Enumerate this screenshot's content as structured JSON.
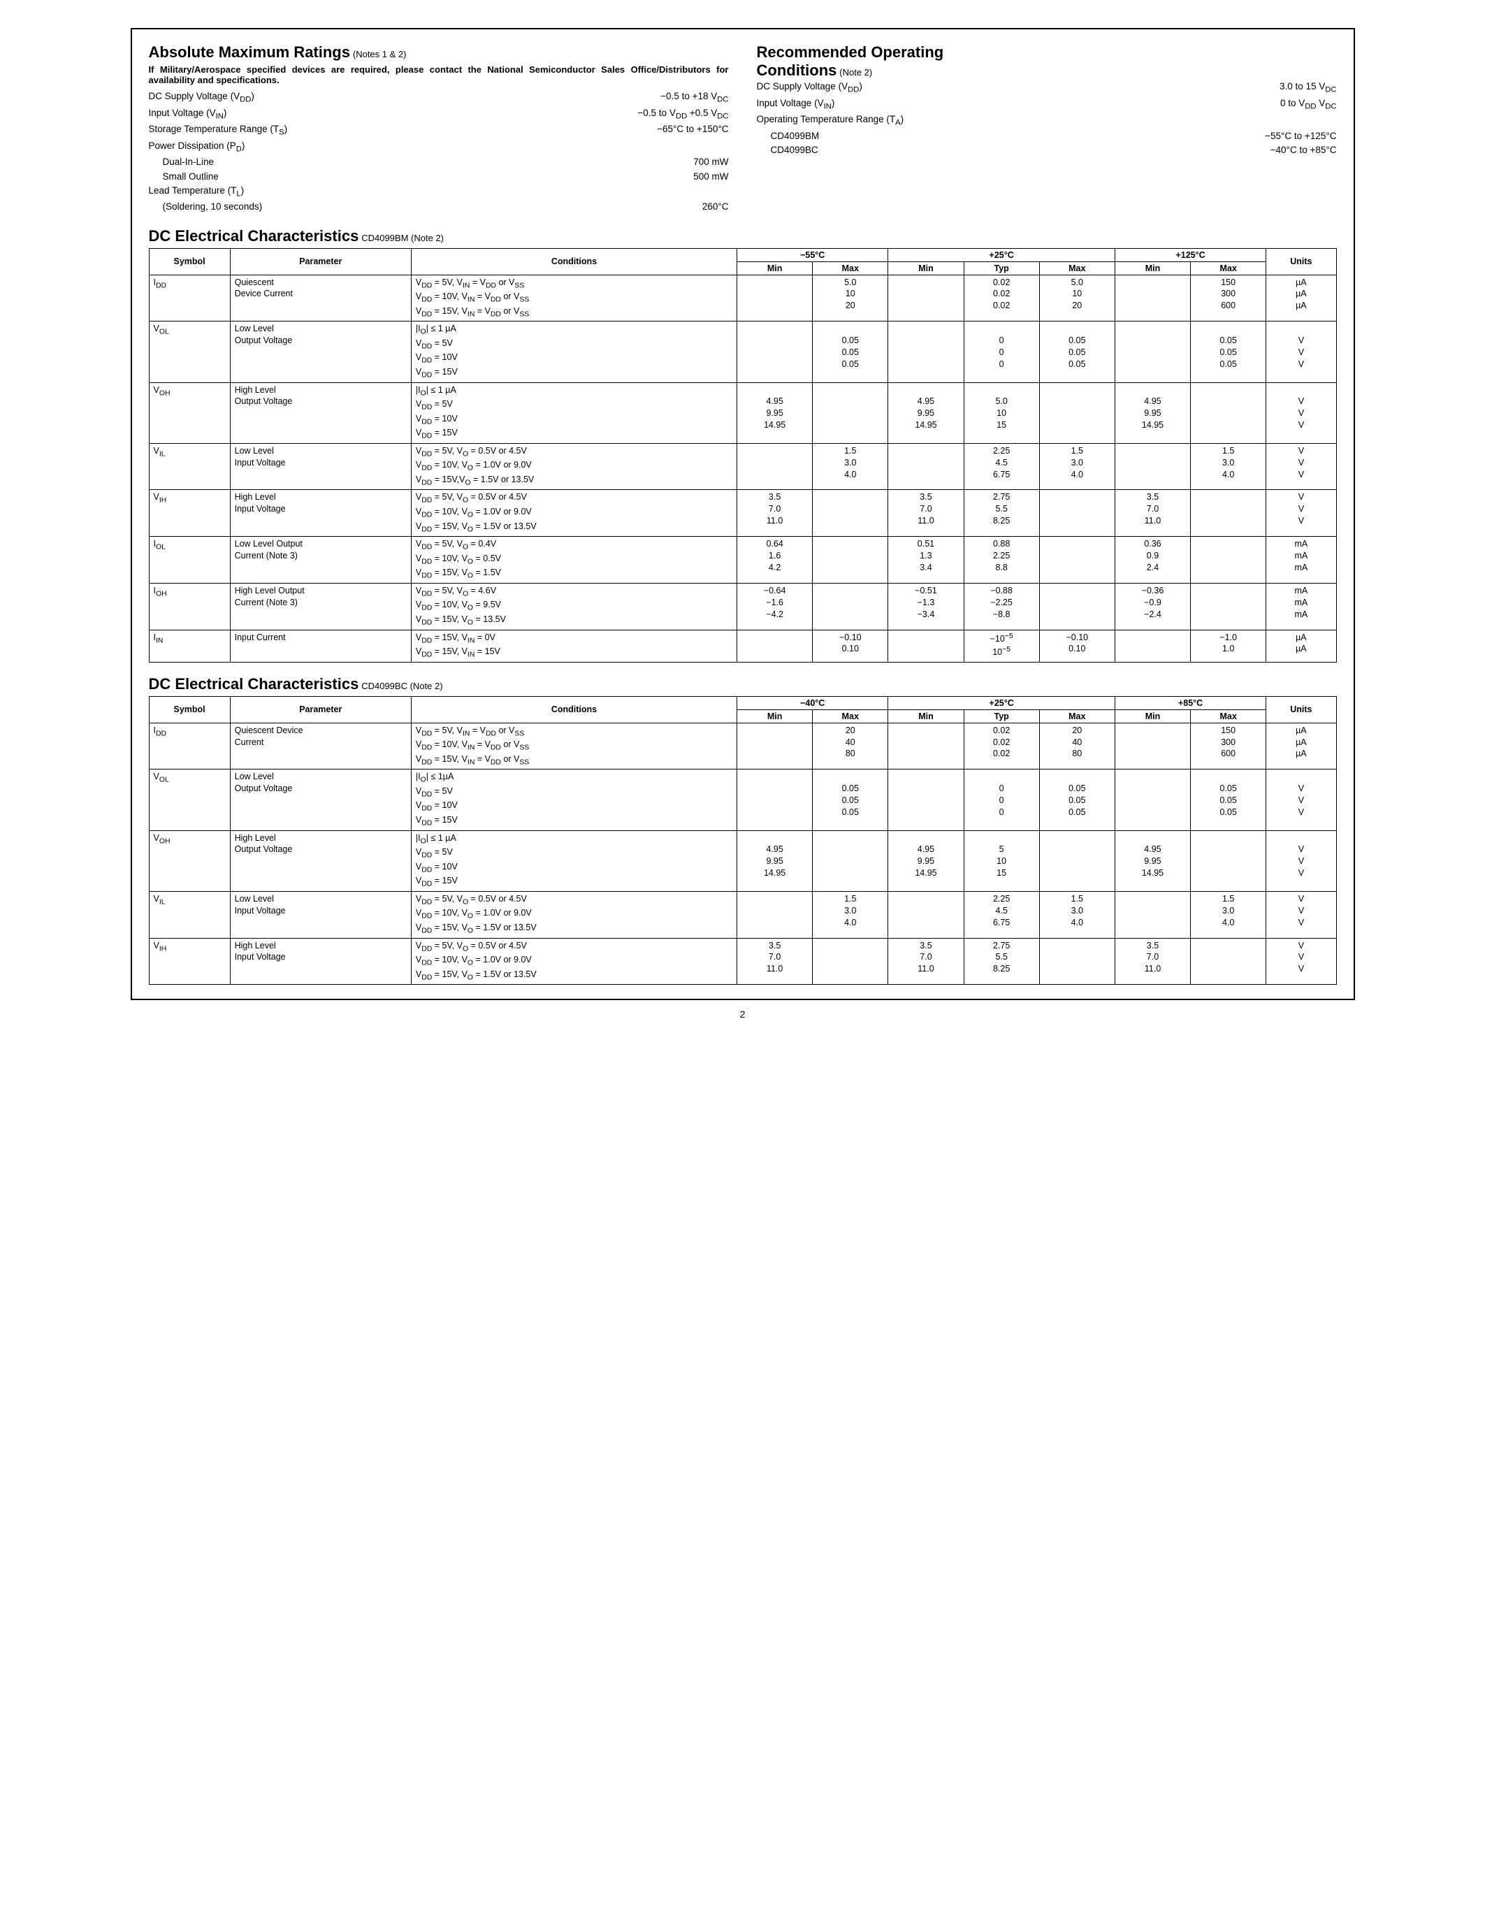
{
  "page_number": "2",
  "abs_max": {
    "title": "Absolute Maximum Ratings",
    "notes": "(Notes 1 & 2)",
    "intro": "If Military/Aerospace specified devices are required, please contact the National Semiconductor Sales Office/Distributors for availability and specifications.",
    "rows": [
      {
        "k": "DC Supply Voltage (V<sub>DD</sub>)",
        "v": "−0.5 to +18 V<sub>DC</sub>"
      },
      {
        "k": "Input Voltage (V<sub>IN</sub>)",
        "v": "−0.5 to V<sub>DD</sub> +0.5 V<sub>DC</sub>"
      },
      {
        "k": "Storage Temperature Range (T<sub>S</sub>)",
        "v": "−65°C to +150°C"
      },
      {
        "k": "Power Dissipation (P<sub>D</sub>)",
        "v": ""
      },
      {
        "k": "Dual-In-Line",
        "v": "700 mW",
        "indent": true
      },
      {
        "k": "Small Outline",
        "v": "500 mW",
        "indent": true
      },
      {
        "k": "Lead Temperature (T<sub>L</sub>)",
        "v": ""
      },
      {
        "k": "(Soldering, 10 seconds)",
        "v": "260°C",
        "indent": true
      }
    ]
  },
  "rec_op": {
    "title": "Recommended Operating",
    "title2": "Conditions",
    "notes": "(Note 2)",
    "rows": [
      {
        "k": "DC Supply Voltage (V<sub>DD</sub>)",
        "v": "3.0 to 15 V<sub>DC</sub>"
      },
      {
        "k": "Input Voltage (V<sub>IN</sub>)",
        "v": "0 to V<sub>DD</sub> V<sub>DC</sub>"
      },
      {
        "k": "Operating Temperature Range (T<sub>A</sub>)",
        "v": ""
      },
      {
        "k": "CD4099BM",
        "v": "−55°C to +125°C",
        "indent": true
      },
      {
        "k": "CD4099BC",
        "v": "−40°C to +85°C",
        "indent": true
      }
    ]
  },
  "dc1": {
    "title": "DC Electrical Characteristics",
    "part": "CD4099BM (Note 2)",
    "temps": [
      "−55°C",
      "+25°C",
      "+125°C"
    ],
    "cols25": [
      "Min",
      "Typ",
      "Max"
    ],
    "rows": [
      {
        "sym": "I<sub>DD</sub>",
        "param": "Quiescent<br>Device Current",
        "cond": "V<sub>DD</sub> = 5V, V<sub>IN</sub> = V<sub>DD</sub> or V<sub>SS</sub><br>V<sub>DD</sub> = 10V, V<sub>IN</sub> = V<sub>DD</sub> or V<sub>SS</sub><br>V<sub>DD</sub> = 15V, V<sub>IN</sub> = V<sub>DD</sub> or V<sub>SS</sub>",
        "t1min": "",
        "t1max": "5.0<br>10<br>20",
        "t2min": "",
        "t2typ": "0.02<br>0.02<br>0.02",
        "t2max": "5.0<br>10<br>20",
        "t3min": "",
        "t3max": "150<br>300<br>600",
        "units": "µA<br>µA<br>µA"
      },
      {
        "sym": "V<sub>OL</sub>",
        "param": "Low Level<br>Output Voltage",
        "cond": "|I<sub>O</sub>| ≤ 1 µA<br>V<sub>DD</sub> = 5V<br>V<sub>DD</sub> = 10V<br>V<sub>DD</sub> = 15V",
        "t1min": "",
        "t1max": "<br>0.05<br>0.05<br>0.05",
        "t2min": "",
        "t2typ": "<br>0<br>0<br>0",
        "t2max": "<br>0.05<br>0.05<br>0.05",
        "t3min": "",
        "t3max": "<br>0.05<br>0.05<br>0.05",
        "units": "<br>V<br>V<br>V"
      },
      {
        "sym": "V<sub>OH</sub>",
        "param": "High Level<br>Output Voltage",
        "cond": "|I<sub>O</sub>| ≤ 1 µA<br>V<sub>DD</sub> = 5V<br>V<sub>DD</sub> = 10V<br>V<sub>DD</sub> = 15V",
        "t1min": "<br>4.95<br>9.95<br>14.95",
        "t1max": "",
        "t2min": "<br>4.95<br>9.95<br>14.95",
        "t2typ": "<br>5.0<br>10<br>15",
        "t2max": "",
        "t3min": "<br>4.95<br>9.95<br>14.95",
        "t3max": "",
        "units": "<br>V<br>V<br>V"
      },
      {
        "sym": "V<sub>IL</sub>",
        "param": "Low Level<br>Input Voltage",
        "cond": "V<sub>DD</sub> = 5V, V<sub>O</sub> = 0.5V or 4.5V<br>V<sub>DD</sub> = 10V, V<sub>O</sub> = 1.0V or 9.0V<br>V<sub>DD</sub> = 15V,V<sub>O</sub> = 1.5V or 13.5V",
        "t1min": "",
        "t1max": "1.5<br>3.0<br>4.0",
        "t2min": "",
        "t2typ": "2.25<br>4.5<br>6.75",
        "t2max": "1.5<br>3.0<br>4.0",
        "t3min": "",
        "t3max": "1.5<br>3.0<br>4.0",
        "units": "V<br>V<br>V"
      },
      {
        "sym": "V<sub>IH</sub>",
        "param": "High Level<br>Input Voltage",
        "cond": "V<sub>DD</sub> = 5V, V<sub>O</sub> = 0.5V or 4.5V<br>V<sub>DD</sub> = 10V, V<sub>O</sub> = 1.0V or 9.0V<br>V<sub>DD</sub> = 15V, V<sub>O</sub> = 1.5V or 13.5V",
        "t1min": "3.5<br>7.0<br>11.0",
        "t1max": "",
        "t2min": "3.5<br>7.0<br>11.0",
        "t2typ": "2.75<br>5.5<br>8.25",
        "t2max": "",
        "t3min": "3.5<br>7.0<br>11.0",
        "t3max": "",
        "units": "V<br>V<br>V"
      },
      {
        "sym": "I<sub>OL</sub>",
        "param": "Low Level Output<br>Current (Note 3)",
        "cond": "V<sub>DD</sub> = 5V, V<sub>O</sub> = 0.4V<br>V<sub>DD</sub> = 10V, V<sub>O</sub> = 0.5V<br>V<sub>DD</sub> = 15V, V<sub>O</sub> = 1.5V",
        "t1min": "0.64<br>1.6<br>4.2",
        "t1max": "",
        "t2min": "0.51<br>1.3<br>3.4",
        "t2typ": "0.88<br>2.25<br>8.8",
        "t2max": "",
        "t3min": "0.36<br>0.9<br>2.4",
        "t3max": "",
        "units": "mA<br>mA<br>mA"
      },
      {
        "sym": "I<sub>OH</sub>",
        "param": "High Level Output<br>Current (Note 3)",
        "cond": "V<sub>DD</sub> = 5V, V<sub>O</sub> = 4.6V<br>V<sub>DD</sub> = 10V, V<sub>O</sub> = 9.5V<br>V<sub>DD</sub> = 15V, V<sub>O</sub> = 13.5V",
        "t1min": "−0.64<br>−1.6<br>−4.2",
        "t1max": "",
        "t2min": "−0.51<br>−1.3<br>−3.4",
        "t2typ": "−0.88<br>−2.25<br>−8.8",
        "t2max": "",
        "t3min": "−0.36<br>−0.9<br>−2.4",
        "t3max": "",
        "units": "mA<br>mA<br>mA"
      },
      {
        "sym": "I<sub>IN</sub>",
        "param": "Input Current",
        "cond": "V<sub>DD</sub> = 15V, V<sub>IN</sub> = 0V<br>V<sub>DD</sub> = 15V, V<sub>IN</sub> = 15V",
        "t1min": "",
        "t1max": "−0.10<br>0.10",
        "t2min": "",
        "t2typ": "−10<sup>−5</sup><br>10<sup>−5</sup>",
        "t2max": "−0.10<br>0.10",
        "t3min": "",
        "t3max": "−1.0<br>1.0",
        "units": "µA<br>µA"
      }
    ]
  },
  "dc2": {
    "title": "DC Electrical Characteristics",
    "part": "CD4099BC (Note 2)",
    "temps": [
      "−40°C",
      "+25°C",
      "+85°C"
    ],
    "rows": [
      {
        "sym": "I<sub>DD</sub>",
        "param": "Quiescent Device<br>Current",
        "cond": "V<sub>DD</sub> = 5V, V<sub>IN</sub> = V<sub>DD</sub> or V<sub>SS</sub><br>V<sub>DD</sub> = 10V, V<sub>IN</sub> = V<sub>DD</sub> or V<sub>SS</sub><br>V<sub>DD</sub> = 15V, V<sub>IN</sub> = V<sub>DD</sub> or V<sub>SS</sub>",
        "t1min": "",
        "t1max": "20<br>40<br>80",
        "t2min": "",
        "t2typ": "0.02<br>0.02<br>0.02",
        "t2max": "20<br>40<br>80",
        "t3min": "",
        "t3max": "150<br>300<br>600",
        "units": "µA<br>µA<br>µA"
      },
      {
        "sym": "V<sub>OL</sub>",
        "param": "Low Level<br>Output Voltage",
        "cond": "|I<sub>O</sub>| ≤ 1µA<br>V<sub>DD</sub> = 5V<br>V<sub>DD</sub> = 10V<br>V<sub>DD</sub> = 15V",
        "t1min": "",
        "t1max": "<br>0.05<br>0.05<br>0.05",
        "t2min": "",
        "t2typ": "<br>0<br>0<br>0",
        "t2max": "<br>0.05<br>0.05<br>0.05",
        "t3min": "",
        "t3max": "<br>0.05<br>0.05<br>0.05",
        "units": "<br>V<br>V<br>V"
      },
      {
        "sym": "V<sub>OH</sub>",
        "param": "High Level<br>Output Voltage",
        "cond": "|I<sub>O</sub>| ≤ 1 µA<br>V<sub>DD</sub> = 5V<br>V<sub>DD</sub> = 10V<br>V<sub>DD</sub> = 15V",
        "t1min": "<br>4.95<br>9.95<br>14.95",
        "t1max": "",
        "t2min": "<br>4.95<br>9.95<br>14.95",
        "t2typ": "<br>5<br>10<br>15",
        "t2max": "",
        "t3min": "<br>4.95<br>9.95<br>14.95",
        "t3max": "",
        "units": "<br>V<br>V<br>V"
      },
      {
        "sym": "V<sub>IL</sub>",
        "param": "Low Level<br>Input Voltage",
        "cond": "V<sub>DD</sub> = 5V, V<sub>O</sub> = 0.5V or 4.5V<br>V<sub>DD</sub> = 10V, V<sub>O</sub> = 1.0V or 9.0V<br>V<sub>DD</sub> = 15V, V<sub>O</sub> = 1.5V or 13.5V",
        "t1min": "",
        "t1max": "1.5<br>3.0<br>4.0",
        "t2min": "",
        "t2typ": "2.25<br>4.5<br>6.75",
        "t2max": "1.5<br>3.0<br>4.0",
        "t3min": "",
        "t3max": "1.5<br>3.0<br>4.0",
        "units": "V<br>V<br>V"
      },
      {
        "sym": "V<sub>IH</sub>",
        "param": "High Level<br>Input Voltage",
        "cond": "V<sub>DD</sub> = 5V, V<sub>O</sub> = 0.5V or 4.5V<br>V<sub>DD</sub> = 10V, V<sub>O</sub> = 1.0V or 9.0V<br>V<sub>DD</sub> = 15V, V<sub>O</sub> = 1.5V or 13.5V",
        "t1min": "3.5<br>7.0<br>11.0",
        "t1max": "",
        "t2min": "3.5<br>7.0<br>11.0",
        "t2typ": "2.75<br>5.5<br>8.25",
        "t2max": "",
        "t3min": "3.5<br>7.0<br>11.0",
        "t3max": "",
        "units": "V<br>V<br>V"
      }
    ]
  },
  "hdr": {
    "symbol": "Symbol",
    "parameter": "Parameter",
    "conditions": "Conditions",
    "min": "Min",
    "max": "Max",
    "typ": "Typ",
    "units": "Units"
  }
}
